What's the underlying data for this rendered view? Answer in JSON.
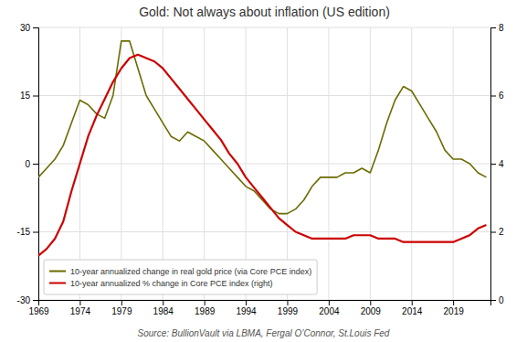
{
  "chart_data": {
    "type": "line",
    "title": "Gold:  Not always about inflation (US edition)",
    "annotations": [
      "Source:  BullionVault via  LBMA, Fergal  O’Connor,   St.Louis Fed"
    ],
    "x": [
      1969,
      1970,
      1971,
      1972,
      1973,
      1974,
      1975,
      1976,
      1977,
      1978,
      1979,
      1980,
      1981,
      1982,
      1983,
      1984,
      1985,
      1986,
      1987,
      1988,
      1989,
      1990,
      1991,
      1992,
      1993,
      1994,
      1995,
      1996,
      1997,
      1998,
      1999,
      2000,
      2001,
      2002,
      2003,
      2004,
      2005,
      2006,
      2007,
      2008,
      2009,
      2010,
      2011,
      2012,
      2013,
      2014,
      2015,
      2016,
      2017,
      2018,
      2019,
      2020,
      2021,
      2022,
      2023
    ],
    "series": [
      {
        "name": "10-year annualized change in real gold price (via Core PCE index)",
        "color": "#6b6b00",
        "values": [
          -3,
          -1,
          1,
          4,
          9,
          14,
          13,
          11,
          10,
          15,
          27,
          27,
          21,
          15,
          12,
          9,
          6,
          5,
          7,
          6,
          5,
          3,
          1,
          -1,
          -3,
          -5,
          -6,
          -8,
          -10,
          -11,
          -11,
          -10,
          -8,
          -5,
          -3,
          -3,
          -3,
          -2,
          -2,
          -1,
          -2,
          3,
          9,
          14,
          17,
          16,
          13,
          10,
          7,
          3,
          1,
          1,
          0,
          -2,
          -3
        ]
      },
      {
        "name": "10-year annualized % change in Core PCE index (right)",
        "color": "#cc0000",
        "axis": "y2",
        "values": [
          1.3,
          1.5,
          1.8,
          2.3,
          3.2,
          4.0,
          4.8,
          5.4,
          5.9,
          6.4,
          6.8,
          7.1,
          7.2,
          7.1,
          7.0,
          6.8,
          6.5,
          6.2,
          5.9,
          5.6,
          5.3,
          5.0,
          4.7,
          4.3,
          4.0,
          3.6,
          3.3,
          3.0,
          2.7,
          2.4,
          2.2,
          2.0,
          1.9,
          1.8,
          1.8,
          1.8,
          1.8,
          1.8,
          1.9,
          1.9,
          1.9,
          1.8,
          1.8,
          1.8,
          1.7,
          1.7,
          1.7,
          1.7,
          1.7,
          1.7,
          1.7,
          1.8,
          1.9,
          2.1,
          2.2
        ]
      }
    ],
    "xlim": [
      1969,
      2023.5
    ],
    "xticks": [
      1969,
      1974,
      1979,
      1984,
      1989,
      1994,
      1999,
      2004,
      2009,
      2014,
      2019
    ],
    "ylim": [
      -30,
      30
    ],
    "yticks": [
      -30,
      -15,
      0,
      15,
      30
    ],
    "y2lim": [
      0,
      8
    ],
    "y2ticks": [
      0,
      2,
      4,
      6,
      8
    ],
    "grid": true,
    "legend": "lower left"
  }
}
